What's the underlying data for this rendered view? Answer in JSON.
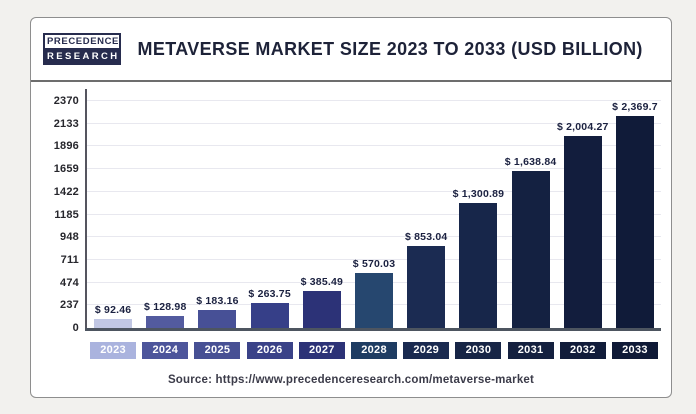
{
  "header": {
    "logo_line1": "PRECEDENCE",
    "logo_line2": "RESEARCH",
    "title": "METAVERSE MARKET SIZE 2023 TO 2033 (USD BILLION)"
  },
  "footer": {
    "source": "Source: https://www.precedenceresearch.com/metaverse-market"
  },
  "chart_data": {
    "type": "bar",
    "title": "METAVERSE MARKET SIZE 2023 TO 2033 (USD BILLION)",
    "categories": [
      "2023",
      "2024",
      "2025",
      "2026",
      "2027",
      "2028",
      "2029",
      "2030",
      "2031",
      "2032",
      "2033"
    ],
    "values": [
      92.46,
      128.98,
      183.16,
      263.75,
      385.49,
      570.03,
      853.04,
      1300.89,
      1638.84,
      2004.27,
      2369.7
    ],
    "value_labels": [
      "$ 92.46",
      "$ 128.98",
      "$ 183.16",
      "$ 263.75",
      "$ 385.49",
      "$ 570.03",
      "$ 853.04",
      "$ 1,300.89",
      "$ 1,638.84",
      "$ 2,004.27",
      "$ 2,369.7"
    ],
    "bar_colors": [
      "#c1c7e4",
      "#535b9f",
      "#475096",
      "#363f88",
      "#2c3277",
      "#26476f",
      "#1b2b52",
      "#17264a",
      "#142141",
      "#121d3d",
      "#101b39"
    ],
    "badge_colors": [
      "#aab3de",
      "#4d559b",
      "#475094",
      "#3a4288",
      "#2c3277",
      "#1e3c62",
      "#1a2a50",
      "#172546",
      "#14203f",
      "#111c3a",
      "#0f1a37"
    ],
    "xlabel": "",
    "ylabel": "",
    "ylim": [
      0,
      2370
    ],
    "yticks": [
      0,
      237,
      474,
      711,
      948,
      1185,
      1422,
      1659,
      1896,
      2133,
      2370
    ],
    "grid": true,
    "legend": "none",
    "units": "USD Billion"
  }
}
